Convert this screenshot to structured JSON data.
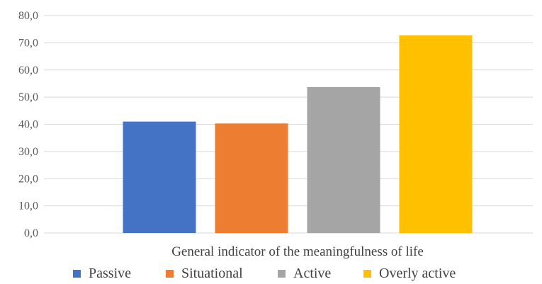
{
  "chart_data": {
    "type": "bar",
    "title": "",
    "xlabel": "",
    "ylabel": "",
    "categories": [
      "General indicator of the meaningfulness of life"
    ],
    "series": [
      {
        "name": "Passive",
        "values": [
          41.0
        ],
        "color": "#4472C4"
      },
      {
        "name": "Situational",
        "values": [
          40.3
        ],
        "color": "#ED7D31"
      },
      {
        "name": "Active",
        "values": [
          53.7
        ],
        "color": "#A5A5A5"
      },
      {
        "name": "Overly active",
        "values": [
          72.7
        ],
        "color": "#FFC000"
      }
    ],
    "ylim": [
      0,
      80
    ],
    "yticks": [
      "0,0",
      "10,0",
      "20,0",
      "30,0",
      "40,0",
      "50,0",
      "60,0",
      "70,0",
      "80,0"
    ],
    "grid": true,
    "legend": "bottom"
  }
}
